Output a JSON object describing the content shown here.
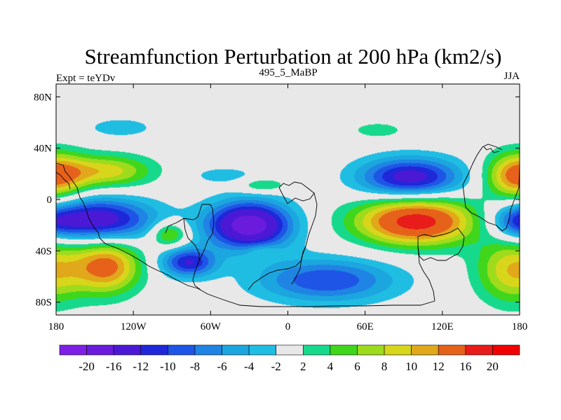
{
  "chart_data": {
    "type": "heatmap",
    "title": "Streamfunction Perturbation at 200 hPa (km2/s)",
    "left_label": "Expt = teYDv",
    "center_label": "495_5_MaBP",
    "right_label": "JJA",
    "x_range": [
      -180,
      180
    ],
    "y_range": [
      -90,
      90
    ],
    "x_ticks": [
      {
        "value": -180,
        "label": "180"
      },
      {
        "value": -120,
        "label": "120W"
      },
      {
        "value": -60,
        "label": "60W"
      },
      {
        "value": 0,
        "label": "0"
      },
      {
        "value": 60,
        "label": "60E"
      },
      {
        "value": 120,
        "label": "120E"
      },
      {
        "value": 180,
        "label": "180"
      }
    ],
    "y_ticks": [
      {
        "value": 80,
        "label": "80N"
      },
      {
        "value": 40,
        "label": "40N"
      },
      {
        "value": 0,
        "label": "0"
      },
      {
        "value": -40,
        "label": "40S"
      },
      {
        "value": -80,
        "label": "80S"
      }
    ],
    "levels": [
      -20,
      -16,
      -12,
      -10,
      -8,
      -6,
      -4,
      -2,
      2,
      4,
      6,
      8,
      10,
      12,
      16,
      20
    ],
    "colors": [
      "#7e1fe6",
      "#6a1bdc",
      "#4b19d6",
      "#1e28d8",
      "#1f55e6",
      "#1f84e3",
      "#1ca6e0",
      "#20bde3",
      "#e8e8e8",
      "#17d98c",
      "#40d61c",
      "#9edb1c",
      "#d8d61a",
      "#e0a81a",
      "#e6621a",
      "#e81c1a",
      "#f00000"
    ],
    "centers": [
      {
        "lon": 95,
        "lat": 17,
        "amp": -14,
        "sx": 28,
        "sy": 11
      },
      {
        "lon": 100,
        "lat": -17,
        "amp": 18,
        "sx": 33,
        "sy": 13
      },
      {
        "lon": -30,
        "lat": -20,
        "amp": -19,
        "sx": 23,
        "sy": 13
      },
      {
        "lon": -150,
        "lat": -16,
        "amp": -15,
        "sx": 32,
        "sy": 12
      },
      {
        "lon": -140,
        "lat": -52,
        "amp": 13,
        "sx": 18,
        "sy": 15
      },
      {
        "lon": -77,
        "lat": -49,
        "amp": -12,
        "sx": 15,
        "sy": 8
      },
      {
        "lon": 30,
        "lat": -63,
        "amp": -10,
        "sx": 38,
        "sy": 12
      },
      {
        "lon": -140,
        "lat": 22,
        "amp": 9,
        "sx": 25,
        "sy": 9
      },
      {
        "lon": -92,
        "lat": -27,
        "amp": 8,
        "sx": 10,
        "sy": 7
      },
      {
        "lon": -130,
        "lat": 56,
        "amp": -4,
        "sx": 17,
        "sy": 5
      },
      {
        "lon": -50,
        "lat": 19,
        "amp": -3,
        "sx": 20,
        "sy": 5
      },
      {
        "lon": -20,
        "lat": 11,
        "amp": 5,
        "sx": 13,
        "sy": 4
      },
      {
        "lon": 70,
        "lat": 54,
        "amp": 4,
        "sx": 13,
        "sy": 4
      },
      {
        "lon": -20,
        "lat": -40,
        "amp": 3,
        "sx": 9,
        "sy": 4
      },
      {
        "lon": 178,
        "lat": 18,
        "amp": 13,
        "sx": 17,
        "sy": 13
      },
      {
        "lon": 175,
        "lat": -55,
        "amp": 10,
        "sx": 20,
        "sy": 18
      },
      {
        "lon": 178,
        "lat": -18,
        "amp": -5,
        "sx": 12,
        "sy": 8
      }
    ]
  }
}
